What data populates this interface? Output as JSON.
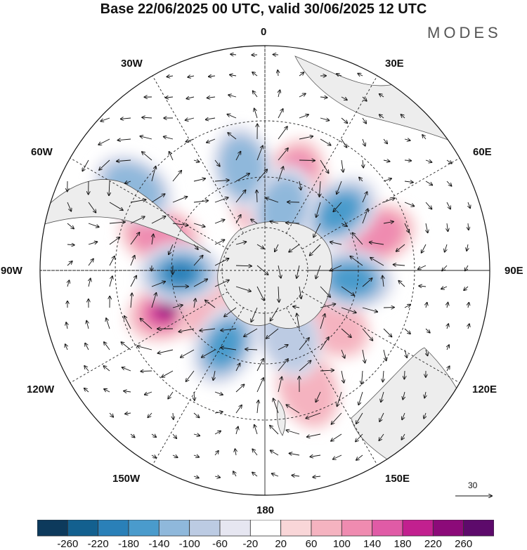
{
  "header": {
    "title": "Base 22/06/2025 00 UTC, valid 30/06/2025 12 UTC",
    "brand": "MODES"
  },
  "map": {
    "projection": "south polar stereographic",
    "longitude_labels": {
      "top": "0",
      "top_right": "30E",
      "right_upper": "60E",
      "right": "90E",
      "right_lower": "120E",
      "bottom_right": "150E",
      "bottom": "180",
      "bottom_left": "150W",
      "left_lower": "120W",
      "left": "90W",
      "left_upper": "60W",
      "top_left": "30W"
    },
    "reference_vector": "30"
  },
  "colorbar": {
    "ticks": [
      "-260",
      "-220",
      "-180",
      "-140",
      "-100",
      "-60",
      "-20",
      "20",
      "60",
      "100",
      "140",
      "180",
      "220",
      "260"
    ],
    "colors": [
      "#0d3a5c",
      "#13608f",
      "#2a80b8",
      "#4a9bcc",
      "#8fb8db",
      "#bccbe3",
      "#e6e6f1",
      "#ffffff",
      "#f9d6d8",
      "#f5b3c0",
      "#ef8bb0",
      "#e05ba6",
      "#c2208f",
      "#8c0a79",
      "#5d0a6b"
    ]
  },
  "highs": [
    {
      "lon": -112,
      "lat": -48,
      "level": 5
    },
    {
      "lon": -72,
      "lat": -46,
      "level": 2
    },
    {
      "lon": 72,
      "lat": -44,
      "level": 2
    },
    {
      "lon": 18,
      "lat": -52,
      "level": 2
    },
    {
      "lon": 38,
      "lat": -62,
      "level": 2
    },
    {
      "lon": 128,
      "lat": -56,
      "level": 1
    },
    {
      "lon": -128,
      "lat": -66,
      "level": 1
    },
    {
      "lon": -5,
      "lat": -60,
      "level": 1
    },
    {
      "lon": -155,
      "lat": -72,
      "level": 1
    },
    {
      "lon": 160,
      "lat": -40,
      "level": 1
    }
  ],
  "lows": [
    {
      "lon": -92,
      "lat": -56,
      "level": 4
    },
    {
      "lon": -152,
      "lat": -56,
      "level": 3
    },
    {
      "lon": 52,
      "lat": -52,
      "level": 3
    },
    {
      "lon": 96,
      "lat": -55,
      "level": 3
    },
    {
      "lon": -12,
      "lat": -48,
      "level": 2
    },
    {
      "lon": 16,
      "lat": -64,
      "level": 2
    },
    {
      "lon": -58,
      "lat": -28,
      "level": 2
    },
    {
      "lon": 160,
      "lat": -62,
      "level": 1
    }
  ]
}
